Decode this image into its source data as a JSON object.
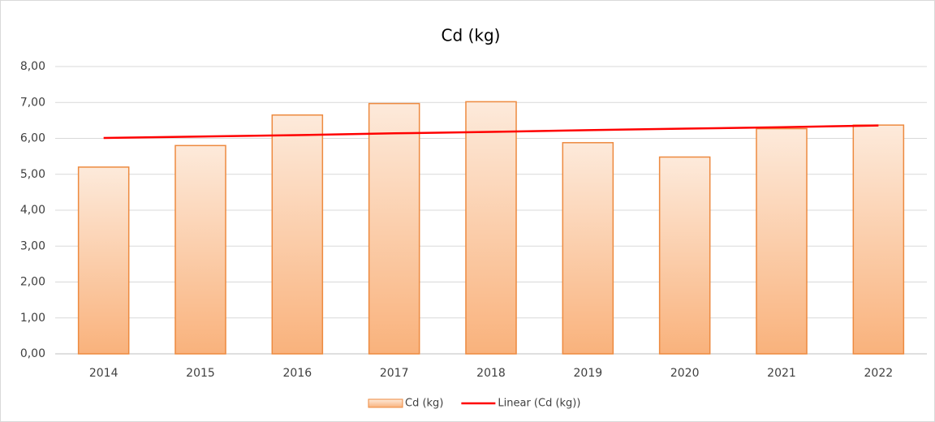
{
  "chart_data": {
    "type": "bar",
    "title": "Cd (kg)",
    "categories": [
      "2014",
      "2015",
      "2016",
      "2017",
      "2018",
      "2019",
      "2020",
      "2021",
      "2022"
    ],
    "series": [
      {
        "name": "Cd (kg)",
        "type": "bar",
        "color": "#f4b183",
        "values": [
          5.2,
          5.8,
          6.65,
          6.97,
          7.02,
          5.88,
          5.48,
          6.27,
          6.37
        ]
      },
      {
        "name": "Linear (Cd (kg))",
        "type": "line",
        "color": "#ff0000",
        "values": [
          6.01,
          6.05,
          6.09,
          6.14,
          6.18,
          6.23,
          6.27,
          6.31,
          6.36
        ]
      }
    ],
    "ylim": [
      0,
      8
    ],
    "yticks": [
      {
        "value": 0,
        "label": "0,00"
      },
      {
        "value": 1,
        "label": "1,00"
      },
      {
        "value": 2,
        "label": "2,00"
      },
      {
        "value": 3,
        "label": "3,00"
      },
      {
        "value": 4,
        "label": "4,00"
      },
      {
        "value": 5,
        "label": "5,00"
      },
      {
        "value": 6,
        "label": "6,00"
      },
      {
        "value": 7,
        "label": "7,00"
      },
      {
        "value": 8,
        "label": "8,00"
      }
    ],
    "grid": true,
    "legend": "bottom"
  }
}
